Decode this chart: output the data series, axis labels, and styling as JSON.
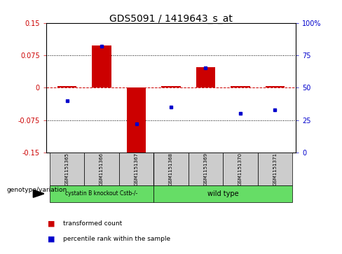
{
  "title": "GDS5091 / 1419643_s_at",
  "categories": [
    "GSM1151365",
    "GSM1151366",
    "GSM1151367",
    "GSM1151368",
    "GSM1151369",
    "GSM1151370",
    "GSM1151371"
  ],
  "bar_values": [
    0.003,
    0.098,
    -0.155,
    0.003,
    0.048,
    0.003,
    0.003
  ],
  "percentile_values": [
    40,
    82,
    22,
    35,
    65,
    30,
    33
  ],
  "ylim_left": [
    -0.15,
    0.15
  ],
  "ylim_right": [
    0,
    100
  ],
  "yticks_left": [
    -0.15,
    -0.075,
    0,
    0.075,
    0.15
  ],
  "yticks_right": [
    0,
    25,
    50,
    75,
    100
  ],
  "bar_color": "#cc0000",
  "dot_color": "#0000cc",
  "zero_line_color": "#cc0000",
  "dot_line_color": "#0000cc",
  "group1_label": "cystatin B knockout Cstb-/-",
  "group2_label": "wild type",
  "group_color": "#66dd66",
  "sample_box_color": "#cccccc",
  "legend_bar_label": "transformed count",
  "legend_dot_label": "percentile rank within the sample",
  "genotype_label": "genotype/variation",
  "background_color": "#ffffff",
  "title_fontsize": 10,
  "axis_fontsize": 7,
  "label_fontsize": 6
}
